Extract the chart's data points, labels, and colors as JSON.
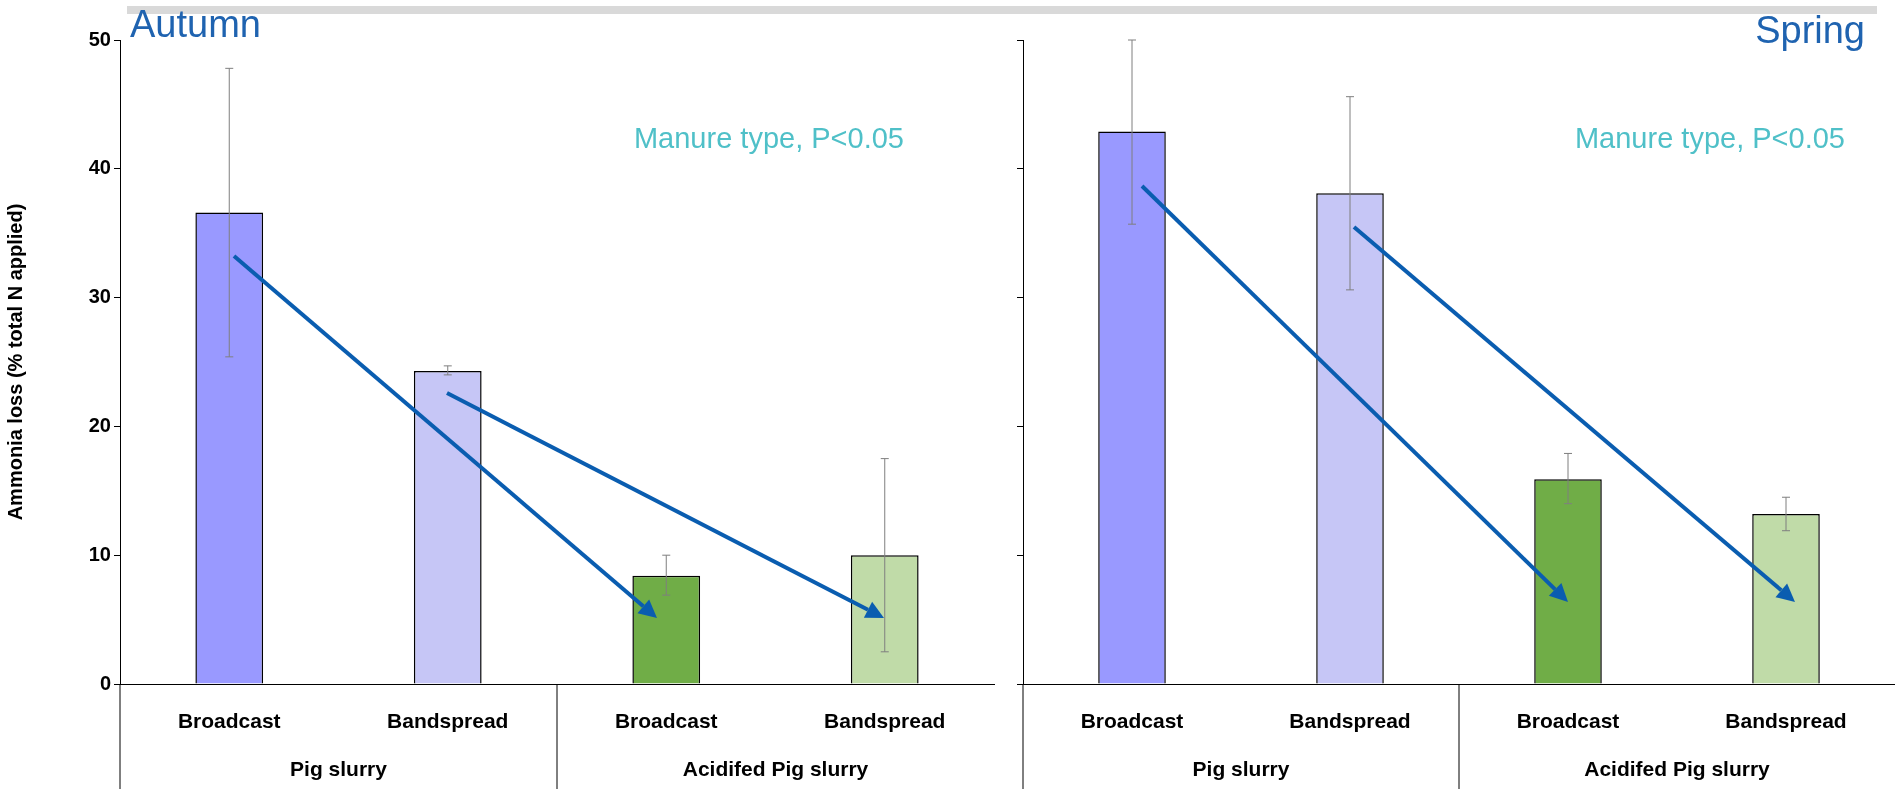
{
  "chart_data": [
    {
      "type": "bar",
      "title": "Autumn",
      "ylabel": "Ammonia loss (% total N applied)",
      "categories": [
        "Broadcast",
        "Bandspread",
        "Broadcast",
        "Bandspread"
      ],
      "values": [
        36.6,
        24.3,
        8.4,
        10.0
      ],
      "colors": [
        "#9999ff",
        "#c6c6f6",
        "#70ad47",
        "#c0dba8"
      ],
      "errors": [
        [
          25.4,
          47.8
        ],
        [
          24.0,
          24.7
        ],
        [
          6.9,
          10.0
        ],
        [
          2.5,
          17.5
        ]
      ],
      "ylim": [
        0,
        50
      ],
      "yticks": [
        0,
        10,
        20,
        30,
        40,
        50
      ],
      "annotations": [
        "Manure type, P<0.05",
        "Pig slurry",
        "Acidifed Pig slurry"
      ]
    },
    {
      "type": "bar",
      "title": "Spring",
      "categories": [
        "Broadcast",
        "Bandspread",
        "Broadcast",
        "Bandspread"
      ],
      "values": [
        42.9,
        38.1,
        15.9,
        13.2
      ],
      "colors": [
        "#9999ff",
        "#c6c6f6",
        "#70ad47",
        "#c0dba8"
      ],
      "errors": [
        [
          35.7,
          50.0
        ],
        [
          30.6,
          45.6
        ],
        [
          14.0,
          17.9
        ],
        [
          11.9,
          14.5
        ]
      ],
      "ylim": [
        0,
        50
      ],
      "yticks": [
        0,
        10,
        20,
        30,
        40,
        50
      ],
      "tick_labels": "x",
      "annotations": [
        "Manure type, P<0.05",
        "Pig slurry",
        "Acidifed Pig slurry"
      ]
    }
  ]
}
